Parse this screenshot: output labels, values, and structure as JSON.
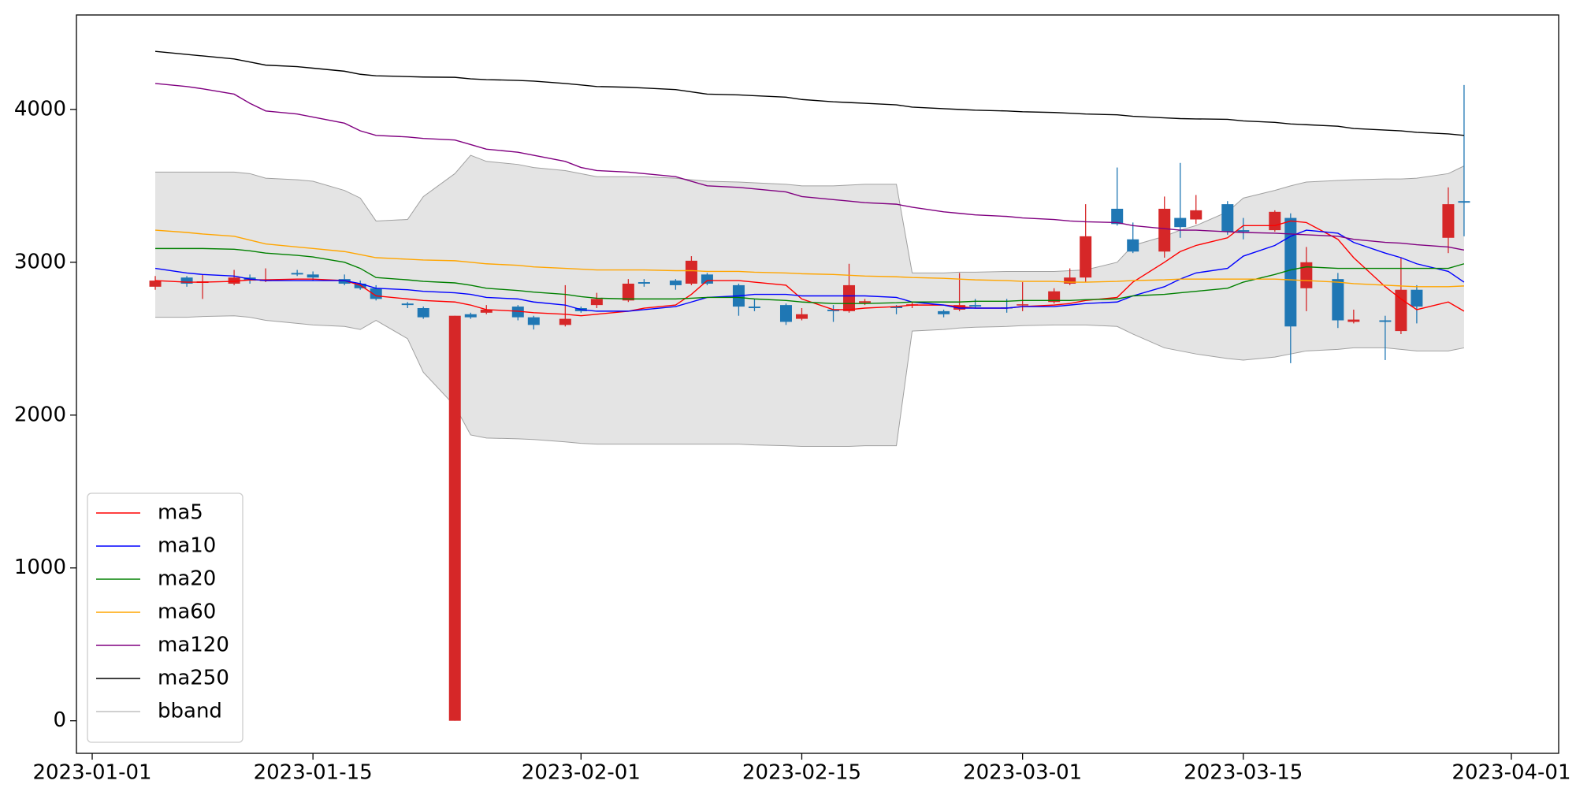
{
  "chart_data": {
    "type": "candlestick",
    "x": [
      "2023-01-05",
      "2023-01-07",
      "2023-01-08",
      "2023-01-10",
      "2023-01-11",
      "2023-01-12",
      "2023-01-14",
      "2023-01-15",
      "2023-01-17",
      "2023-01-18",
      "2023-01-19",
      "2023-01-21",
      "2023-01-22",
      "2023-01-24",
      "2023-01-25",
      "2023-01-26",
      "2023-01-28",
      "2023-01-29",
      "2023-01-31",
      "2023-02-01",
      "2023-02-02",
      "2023-02-04",
      "2023-02-05",
      "2023-02-07",
      "2023-02-08",
      "2023-02-09",
      "2023-02-11",
      "2023-02-12",
      "2023-02-14",
      "2023-02-15",
      "2023-02-17",
      "2023-02-18",
      "2023-02-19",
      "2023-02-21",
      "2023-02-22",
      "2023-02-24",
      "2023-02-25",
      "2023-02-26",
      "2023-02-28",
      "2023-03-01",
      "2023-03-03",
      "2023-03-04",
      "2023-03-05",
      "2023-03-07",
      "2023-03-08",
      "2023-03-10",
      "2023-03-11",
      "2023-03-12",
      "2023-03-14",
      "2023-03-15",
      "2023-03-17",
      "2023-03-18",
      "2023-03-19",
      "2023-03-21",
      "2023-03-22",
      "2023-03-24",
      "2023-03-25",
      "2023-03-26",
      "2023-03-28",
      "2023-03-29"
    ],
    "open": [
      2840,
      2900,
      2865,
      2860,
      2900,
      2880,
      2930,
      2920,
      2890,
      2860,
      2830,
      2730,
      2700,
      0,
      2660,
      2670,
      2710,
      2640,
      2590,
      2700,
      2720,
      2750,
      2870,
      2880,
      2860,
      2920,
      2850,
      2710,
      2720,
      2630,
      2690,
      2680,
      2735,
      2710,
      2720,
      2680,
      2690,
      2720,
      2705,
      2720,
      2740,
      2860,
      2900,
      3350,
      3150,
      3070,
      3290,
      3280,
      3380,
      3210,
      3210,
      3290,
      2830,
      2890,
      2610,
      2620,
      2550,
      2820,
      3160,
      3400
    ],
    "high": [
      2910,
      2910,
      2920,
      2950,
      2920,
      2960,
      2950,
      2940,
      2920,
      2880,
      2850,
      2740,
      2710,
      2650,
      2670,
      2720,
      2720,
      2650,
      2850,
      2710,
      2800,
      2890,
      2890,
      2890,
      3040,
      2930,
      2860,
      2760,
      2730,
      2700,
      2720,
      2990,
      2760,
      2720,
      2740,
      2690,
      2930,
      2760,
      2760,
      2870,
      2830,
      2960,
      3380,
      3620,
      3260,
      3430,
      3650,
      3440,
      3400,
      3290,
      3340,
      3320,
      3100,
      2930,
      2690,
      2650,
      3030,
      2850,
      3490,
      4160
    ],
    "low": [
      2820,
      2840,
      2760,
      2850,
      2860,
      2870,
      2910,
      2880,
      2850,
      2820,
      2750,
      2700,
      2630,
      0,
      2630,
      2660,
      2620,
      2560,
      2580,
      2670,
      2700,
      2740,
      2840,
      2820,
      2850,
      2850,
      2650,
      2680,
      2590,
      2620,
      2610,
      2670,
      2720,
      2660,
      2700,
      2640,
      2680,
      2700,
      2670,
      2680,
      2730,
      2850,
      2870,
      3240,
      3060,
      3030,
      3160,
      3250,
      3180,
      3150,
      3200,
      2340,
      2680,
      2570,
      2600,
      2360,
      2530,
      2600,
      3060,
      3170
    ],
    "close": [
      2880,
      2860,
      2875,
      2900,
      2880,
      2885,
      2920,
      2900,
      2860,
      2830,
      2760,
      2720,
      2640,
      2650,
      2640,
      2690,
      2640,
      2590,
      2630,
      2680,
      2760,
      2860,
      2860,
      2850,
      3010,
      2860,
      2710,
      2700,
      2610,
      2660,
      2680,
      2850,
      2745,
      2700,
      2725,
      2660,
      2720,
      2710,
      2700,
      2725,
      2810,
      2900,
      3170,
      3250,
      3070,
      3350,
      3230,
      3340,
      3200,
      3200,
      3330,
      2580,
      3000,
      2620,
      2625,
      2610,
      2820,
      2710,
      3380,
      3390
    ],
    "up_color": "#d62728",
    "down_color": "#1f77b4",
    "series": [
      {
        "name": "ma5",
        "color": "#ff0000",
        "values": [
          2880,
          2870,
          2870,
          2875,
          2885,
          2885,
          2890,
          2890,
          2880,
          2850,
          2780,
          2760,
          2750,
          2740,
          2720,
          2690,
          2680,
          2670,
          2660,
          2650,
          2660,
          2680,
          2700,
          2720,
          2790,
          2880,
          2880,
          2870,
          2850,
          2760,
          2690,
          2690,
          2700,
          2710,
          2720,
          2720,
          2710,
          2700,
          2700,
          2710,
          2720,
          2730,
          2750,
          2770,
          2870,
          3000,
          3070,
          3110,
          3160,
          3240,
          3240,
          3270,
          3260,
          3150,
          3030,
          2840,
          2760,
          2690,
          2740,
          2680
        ]
      },
      {
        "name": "ma10",
        "color": "#0000ff",
        "values": [
          2960,
          2930,
          2920,
          2910,
          2890,
          2880,
          2880,
          2880,
          2880,
          2860,
          2830,
          2820,
          2810,
          2800,
          2790,
          2770,
          2760,
          2740,
          2720,
          2690,
          2680,
          2680,
          2690,
          2710,
          2740,
          2770,
          2780,
          2790,
          2790,
          2780,
          2780,
          2780,
          2780,
          2770,
          2740,
          2720,
          2700,
          2700,
          2700,
          2710,
          2710,
          2720,
          2730,
          2740,
          2780,
          2840,
          2890,
          2930,
          2960,
          3040,
          3110,
          3170,
          3210,
          3190,
          3130,
          3060,
          3030,
          2990,
          2940,
          2870
        ]
      },
      {
        "name": "ma20",
        "color": "#008000",
        "values": [
          3090,
          3090,
          3090,
          3085,
          3075,
          3060,
          3045,
          3035,
          3000,
          2960,
          2900,
          2885,
          2875,
          2865,
          2850,
          2830,
          2815,
          2805,
          2790,
          2775,
          2765,
          2760,
          2760,
          2760,
          2765,
          2770,
          2770,
          2760,
          2750,
          2740,
          2730,
          2730,
          2730,
          2735,
          2740,
          2740,
          2740,
          2745,
          2745,
          2750,
          2750,
          2750,
          2755,
          2760,
          2780,
          2790,
          2800,
          2810,
          2830,
          2870,
          2920,
          2950,
          2970,
          2960,
          2960,
          2960,
          2960,
          2960,
          2960,
          2990
        ]
      },
      {
        "name": "ma60",
        "color": "#ffa500",
        "values": [
          3210,
          3195,
          3185,
          3170,
          3145,
          3120,
          3100,
          3090,
          3070,
          3050,
          3030,
          3020,
          3015,
          3010,
          3000,
          2990,
          2980,
          2970,
          2960,
          2955,
          2950,
          2950,
          2950,
          2945,
          2945,
          2940,
          2940,
          2935,
          2930,
          2925,
          2920,
          2915,
          2910,
          2905,
          2900,
          2895,
          2890,
          2885,
          2880,
          2875,
          2875,
          2870,
          2870,
          2875,
          2880,
          2885,
          2890,
          2890,
          2890,
          2890,
          2890,
          2885,
          2880,
          2870,
          2860,
          2850,
          2845,
          2840,
          2840,
          2845
        ]
      },
      {
        "name": "ma120",
        "color": "#800080",
        "values": [
          4170,
          4150,
          4135,
          4100,
          4040,
          3990,
          3970,
          3950,
          3910,
          3860,
          3830,
          3820,
          3810,
          3800,
          3770,
          3740,
          3720,
          3700,
          3660,
          3620,
          3600,
          3590,
          3580,
          3560,
          3530,
          3500,
          3490,
          3480,
          3460,
          3430,
          3410,
          3400,
          3390,
          3380,
          3360,
          3330,
          3320,
          3310,
          3300,
          3290,
          3280,
          3270,
          3265,
          3260,
          3240,
          3220,
          3210,
          3210,
          3200,
          3195,
          3190,
          3185,
          3180,
          3170,
          3150,
          3130,
          3125,
          3115,
          3100,
          3080
        ]
      },
      {
        "name": "ma250",
        "color": "#000000",
        "values": [
          4380,
          4360,
          4350,
          4330,
          4310,
          4290,
          4280,
          4270,
          4250,
          4230,
          4220,
          4215,
          4212,
          4210,
          4200,
          4195,
          4190,
          4185,
          4170,
          4160,
          4150,
          4145,
          4140,
          4130,
          4115,
          4100,
          4095,
          4090,
          4080,
          4065,
          4050,
          4045,
          4040,
          4030,
          4015,
          4005,
          4000,
          3995,
          3990,
          3985,
          3980,
          3975,
          3970,
          3965,
          3955,
          3945,
          3940,
          3938,
          3935,
          3925,
          3915,
          3905,
          3900,
          3890,
          3875,
          3865,
          3860,
          3850,
          3840,
          3830
        ]
      }
    ],
    "bband": {
      "name": "bband",
      "color": "#a0a0a0",
      "fill": "#e4e4e4",
      "upper": [
        3590,
        3590,
        3590,
        3590,
        3580,
        3550,
        3540,
        3530,
        3470,
        3420,
        3270,
        3280,
        3430,
        3580,
        3700,
        3660,
        3640,
        3620,
        3600,
        3580,
        3560,
        3560,
        3560,
        3550,
        3540,
        3530,
        3525,
        3520,
        3510,
        3500,
        3500,
        3505,
        3510,
        3510,
        2930,
        2930,
        2935,
        2935,
        2940,
        2940,
        2940,
        2945,
        2950,
        3000,
        3110,
        3170,
        3210,
        3240,
        3330,
        3420,
        3470,
        3500,
        3525,
        3535,
        3540,
        3545,
        3545,
        3550,
        3580,
        3630
      ],
      "lower": [
        2640,
        2640,
        2645,
        2650,
        2640,
        2620,
        2600,
        2590,
        2580,
        2560,
        2620,
        2500,
        2280,
        2060,
        1870,
        1850,
        1845,
        1840,
        1825,
        1815,
        1810,
        1810,
        1810,
        1810,
        1810,
        1810,
        1810,
        1805,
        1800,
        1795,
        1795,
        1795,
        1800,
        1800,
        2550,
        2560,
        2570,
        2575,
        2580,
        2585,
        2590,
        2590,
        2590,
        2580,
        2530,
        2440,
        2420,
        2400,
        2370,
        2360,
        2380,
        2400,
        2420,
        2430,
        2440,
        2440,
        2430,
        2420,
        2420,
        2440
      ]
    },
    "xlim": [
      "2022-12-31",
      "2023-04-04"
    ],
    "xticks": [
      "2023-01-01",
      "2023-01-15",
      "2023-02-01",
      "2023-02-15",
      "2023-03-01",
      "2023-03-15",
      "2023-04-01"
    ],
    "ylim": [
      -213,
      4618
    ],
    "yticks": [
      0,
      1000,
      2000,
      3000,
      4000
    ],
    "legend": "lower left"
  }
}
